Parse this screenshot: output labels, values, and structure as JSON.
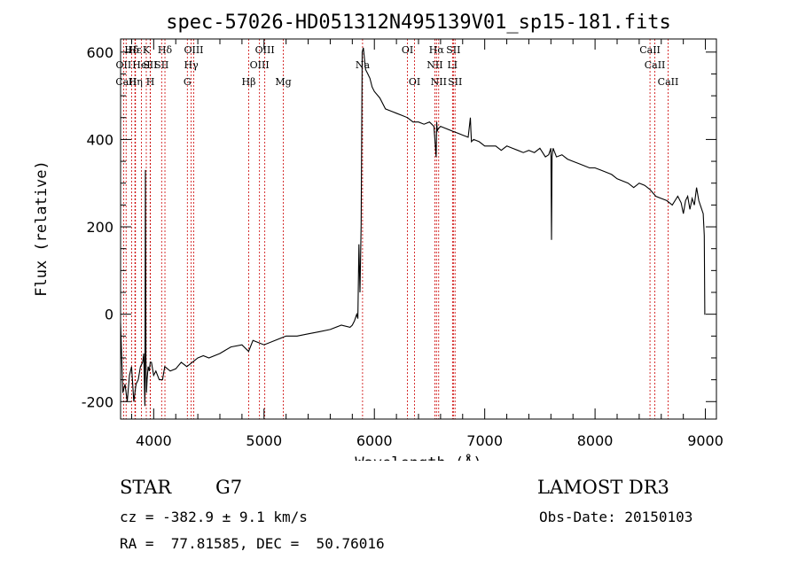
{
  "header": {
    "title": "spec-57026-HD051312N495139V01_sp15-181.fits"
  },
  "chart_data": {
    "type": "line",
    "title": "spec-57026-HD051312N495139V01_sp15-181.fits",
    "xlabel": "Wavelength (Å)",
    "ylabel": "Flux (relative)",
    "xlim": [
      3700,
      9100
    ],
    "ylim": [
      -240,
      630
    ],
    "x_ticks": [
      4000,
      5000,
      6000,
      7000,
      8000,
      9000
    ],
    "y_ticks": [
      -200,
      0,
      200,
      400,
      600
    ],
    "x_minor_step": 200,
    "y_minor_step": 50,
    "series": [
      {
        "name": "spectrum",
        "x": [
          3700,
          3720,
          3740,
          3760,
          3780,
          3800,
          3820,
          3840,
          3860,
          3880,
          3900,
          3910,
          3920,
          3925,
          3930,
          3935,
          3940,
          3950,
          3960,
          3968,
          3980,
          4000,
          4020,
          4050,
          4080,
          4100,
          4150,
          4200,
          4250,
          4300,
          4350,
          4400,
          4450,
          4500,
          4600,
          4700,
          4800,
          4860,
          4900,
          5000,
          5100,
          5200,
          5300,
          5400,
          5500,
          5600,
          5700,
          5780,
          5800,
          5820,
          5840,
          5850,
          5860,
          5870,
          5880,
          5890,
          5900,
          5920,
          5940,
          5960,
          5980,
          6000,
          6050,
          6100,
          6150,
          6200,
          6250,
          6300,
          6350,
          6400,
          6450,
          6500,
          6540,
          6560,
          6565,
          6570,
          6580,
          6600,
          6650,
          6700,
          6750,
          6800,
          6850,
          6870,
          6875,
          6880,
          6900,
          6950,
          7000,
          7050,
          7100,
          7150,
          7200,
          7250,
          7300,
          7350,
          7400,
          7450,
          7500,
          7550,
          7580,
          7600,
          7605,
          7610,
          7620,
          7650,
          7700,
          7750,
          7800,
          7850,
          7900,
          7950,
          8000,
          8050,
          8100,
          8150,
          8200,
          8250,
          8300,
          8350,
          8400,
          8450,
          8500,
          8550,
          8600,
          8650,
          8700,
          8750,
          8780,
          8800,
          8820,
          8840,
          8860,
          8880,
          8900,
          8920,
          8940,
          8960,
          8980,
          8990,
          8995,
          9000
        ],
        "values": [
          -20,
          -180,
          -160,
          -200,
          -140,
          -120,
          -200,
          -160,
          -150,
          -120,
          -110,
          -90,
          -210,
          330,
          -100,
          -180,
          -150,
          -120,
          -130,
          -110,
          -110,
          -140,
          -130,
          -150,
          -150,
          -120,
          -130,
          -125,
          -110,
          -120,
          -110,
          -100,
          -95,
          -100,
          -90,
          -75,
          -70,
          -85,
          -60,
          -70,
          -60,
          -50,
          -50,
          -45,
          -40,
          -35,
          -25,
          -30,
          -25,
          -15,
          0,
          -10,
          160,
          50,
          205,
          600,
          610,
          560,
          550,
          540,
          520,
          510,
          495,
          470,
          465,
          460,
          455,
          450,
          440,
          440,
          435,
          440,
          430,
          360,
          440,
          420,
          425,
          430,
          425,
          420,
          415,
          410,
          405,
          450,
          420,
          395,
          400,
          395,
          385,
          385,
          385,
          375,
          385,
          380,
          375,
          370,
          375,
          370,
          380,
          360,
          365,
          380,
          170,
          360,
          380,
          360,
          365,
          355,
          350,
          345,
          340,
          335,
          335,
          330,
          325,
          320,
          310,
          305,
          300,
          290,
          300,
          295,
          285,
          270,
          265,
          260,
          250,
          270,
          255,
          230,
          260,
          270,
          240,
          265,
          250,
          290,
          260,
          245,
          230,
          180,
          0,
          0
        ]
      }
    ],
    "emission_lines": [
      {
        "label": "Hδ",
        "x": 3800,
        "row": 1
      },
      {
        "label": "OII",
        "x": 3727,
        "row": 2
      },
      {
        "label": "CaII",
        "x": 3750,
        "row": 3
      },
      {
        "label": "Hε",
        "x": 3830,
        "row": 1
      },
      {
        "label": "Hη",
        "x": 3835,
        "row": 3
      },
      {
        "label": "HeI",
        "x": 3889,
        "row": 2
      },
      {
        "label": "K",
        "x": 3933,
        "row": 1
      },
      {
        "label": "SII",
        "x": 3968,
        "row": 2
      },
      {
        "label": "H",
        "x": 3970,
        "row": 3
      },
      {
        "label": "Hδ",
        "x": 4102,
        "row": 1
      },
      {
        "label": "SII",
        "x": 4072,
        "row": 2
      },
      {
        "label": "OIII",
        "x": 4363,
        "row": 1
      },
      {
        "label": "Hγ",
        "x": 4340,
        "row": 2
      },
      {
        "label": "G",
        "x": 4305,
        "row": 3
      },
      {
        "label": "Hβ",
        "x": 4861,
        "row": 3
      },
      {
        "label": "OIII",
        "x": 4959,
        "row": 2
      },
      {
        "label": "OIII",
        "x": 5007,
        "row": 1
      },
      {
        "label": "Mg",
        "x": 5175,
        "row": 3
      },
      {
        "label": "Na",
        "x": 5893,
        "row": 2
      },
      {
        "label": "OI",
        "x": 6300,
        "row": 1
      },
      {
        "label": "OI",
        "x": 6364,
        "row": 3
      },
      {
        "label": "Hα",
        "x": 6563,
        "row": 1
      },
      {
        "label": "NII",
        "x": 6548,
        "row": 2
      },
      {
        "label": "NII",
        "x": 6583,
        "row": 3
      },
      {
        "label": "SII",
        "x": 6716,
        "row": 1
      },
      {
        "label": "LI",
        "x": 6708,
        "row": 2
      },
      {
        "label": "SII",
        "x": 6731,
        "row": 3
      },
      {
        "label": "CaII",
        "x": 8498,
        "row": 1
      },
      {
        "label": "CaII",
        "x": 8542,
        "row": 2
      },
      {
        "label": "CaII",
        "x": 8662,
        "row": 3
      }
    ]
  },
  "info": {
    "object_class": "STAR",
    "subclass": "G7",
    "survey": "LAMOST DR3",
    "redshift": "cz = -382.9 ± 9.1 km/s",
    "obs_date": "Obs-Date: 20150103",
    "coords": "RA =  77.81585, DEC =  50.76016"
  }
}
